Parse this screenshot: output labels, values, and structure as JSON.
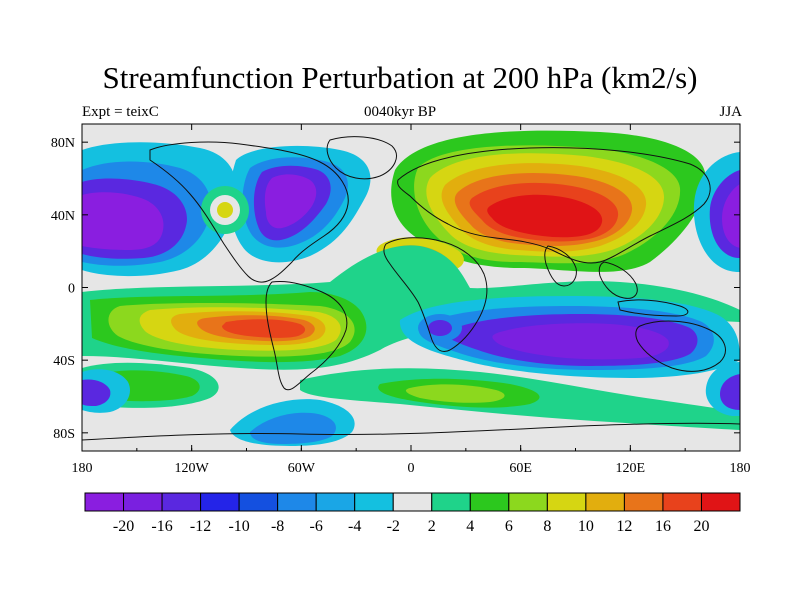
{
  "title": "Streamfunction Perturbation at 200 hPa (km2/s)",
  "subtitle_left": "Expt = teixC",
  "subtitle_center": "0040kyr BP",
  "subtitle_right": "JJA",
  "map": {
    "projection": "cylindrical equidistant",
    "lon_range": [
      -180,
      180
    ],
    "lat_range": [
      -90,
      90
    ],
    "lon_ticks": [
      "180",
      "120W",
      "60W",
      "0",
      "60E",
      "120E",
      "180"
    ],
    "lat_ticks": [
      "80N",
      "40N",
      "0",
      "40S",
      "80S"
    ],
    "coastlines": true
  },
  "colorbar": {
    "levels": [
      "-20",
      "-16",
      "-12",
      "-10",
      "-8",
      "-6",
      "-4",
      "-2",
      "2",
      "4",
      "6",
      "8",
      "10",
      "12",
      "16",
      "20"
    ],
    "colors": [
      "#8a1ee0",
      "#7a20e0",
      "#5a28e0",
      "#2424e8",
      "#1450e0",
      "#1e88e8",
      "#1aa6e6",
      "#14c0e0",
      "#e6e6e6",
      "#1fd38a",
      "#2cc81e",
      "#8cd81e",
      "#d6d612",
      "#e2ae0e",
      "#e8741a",
      "#e8421c",
      "#e01416"
    ]
  }
}
